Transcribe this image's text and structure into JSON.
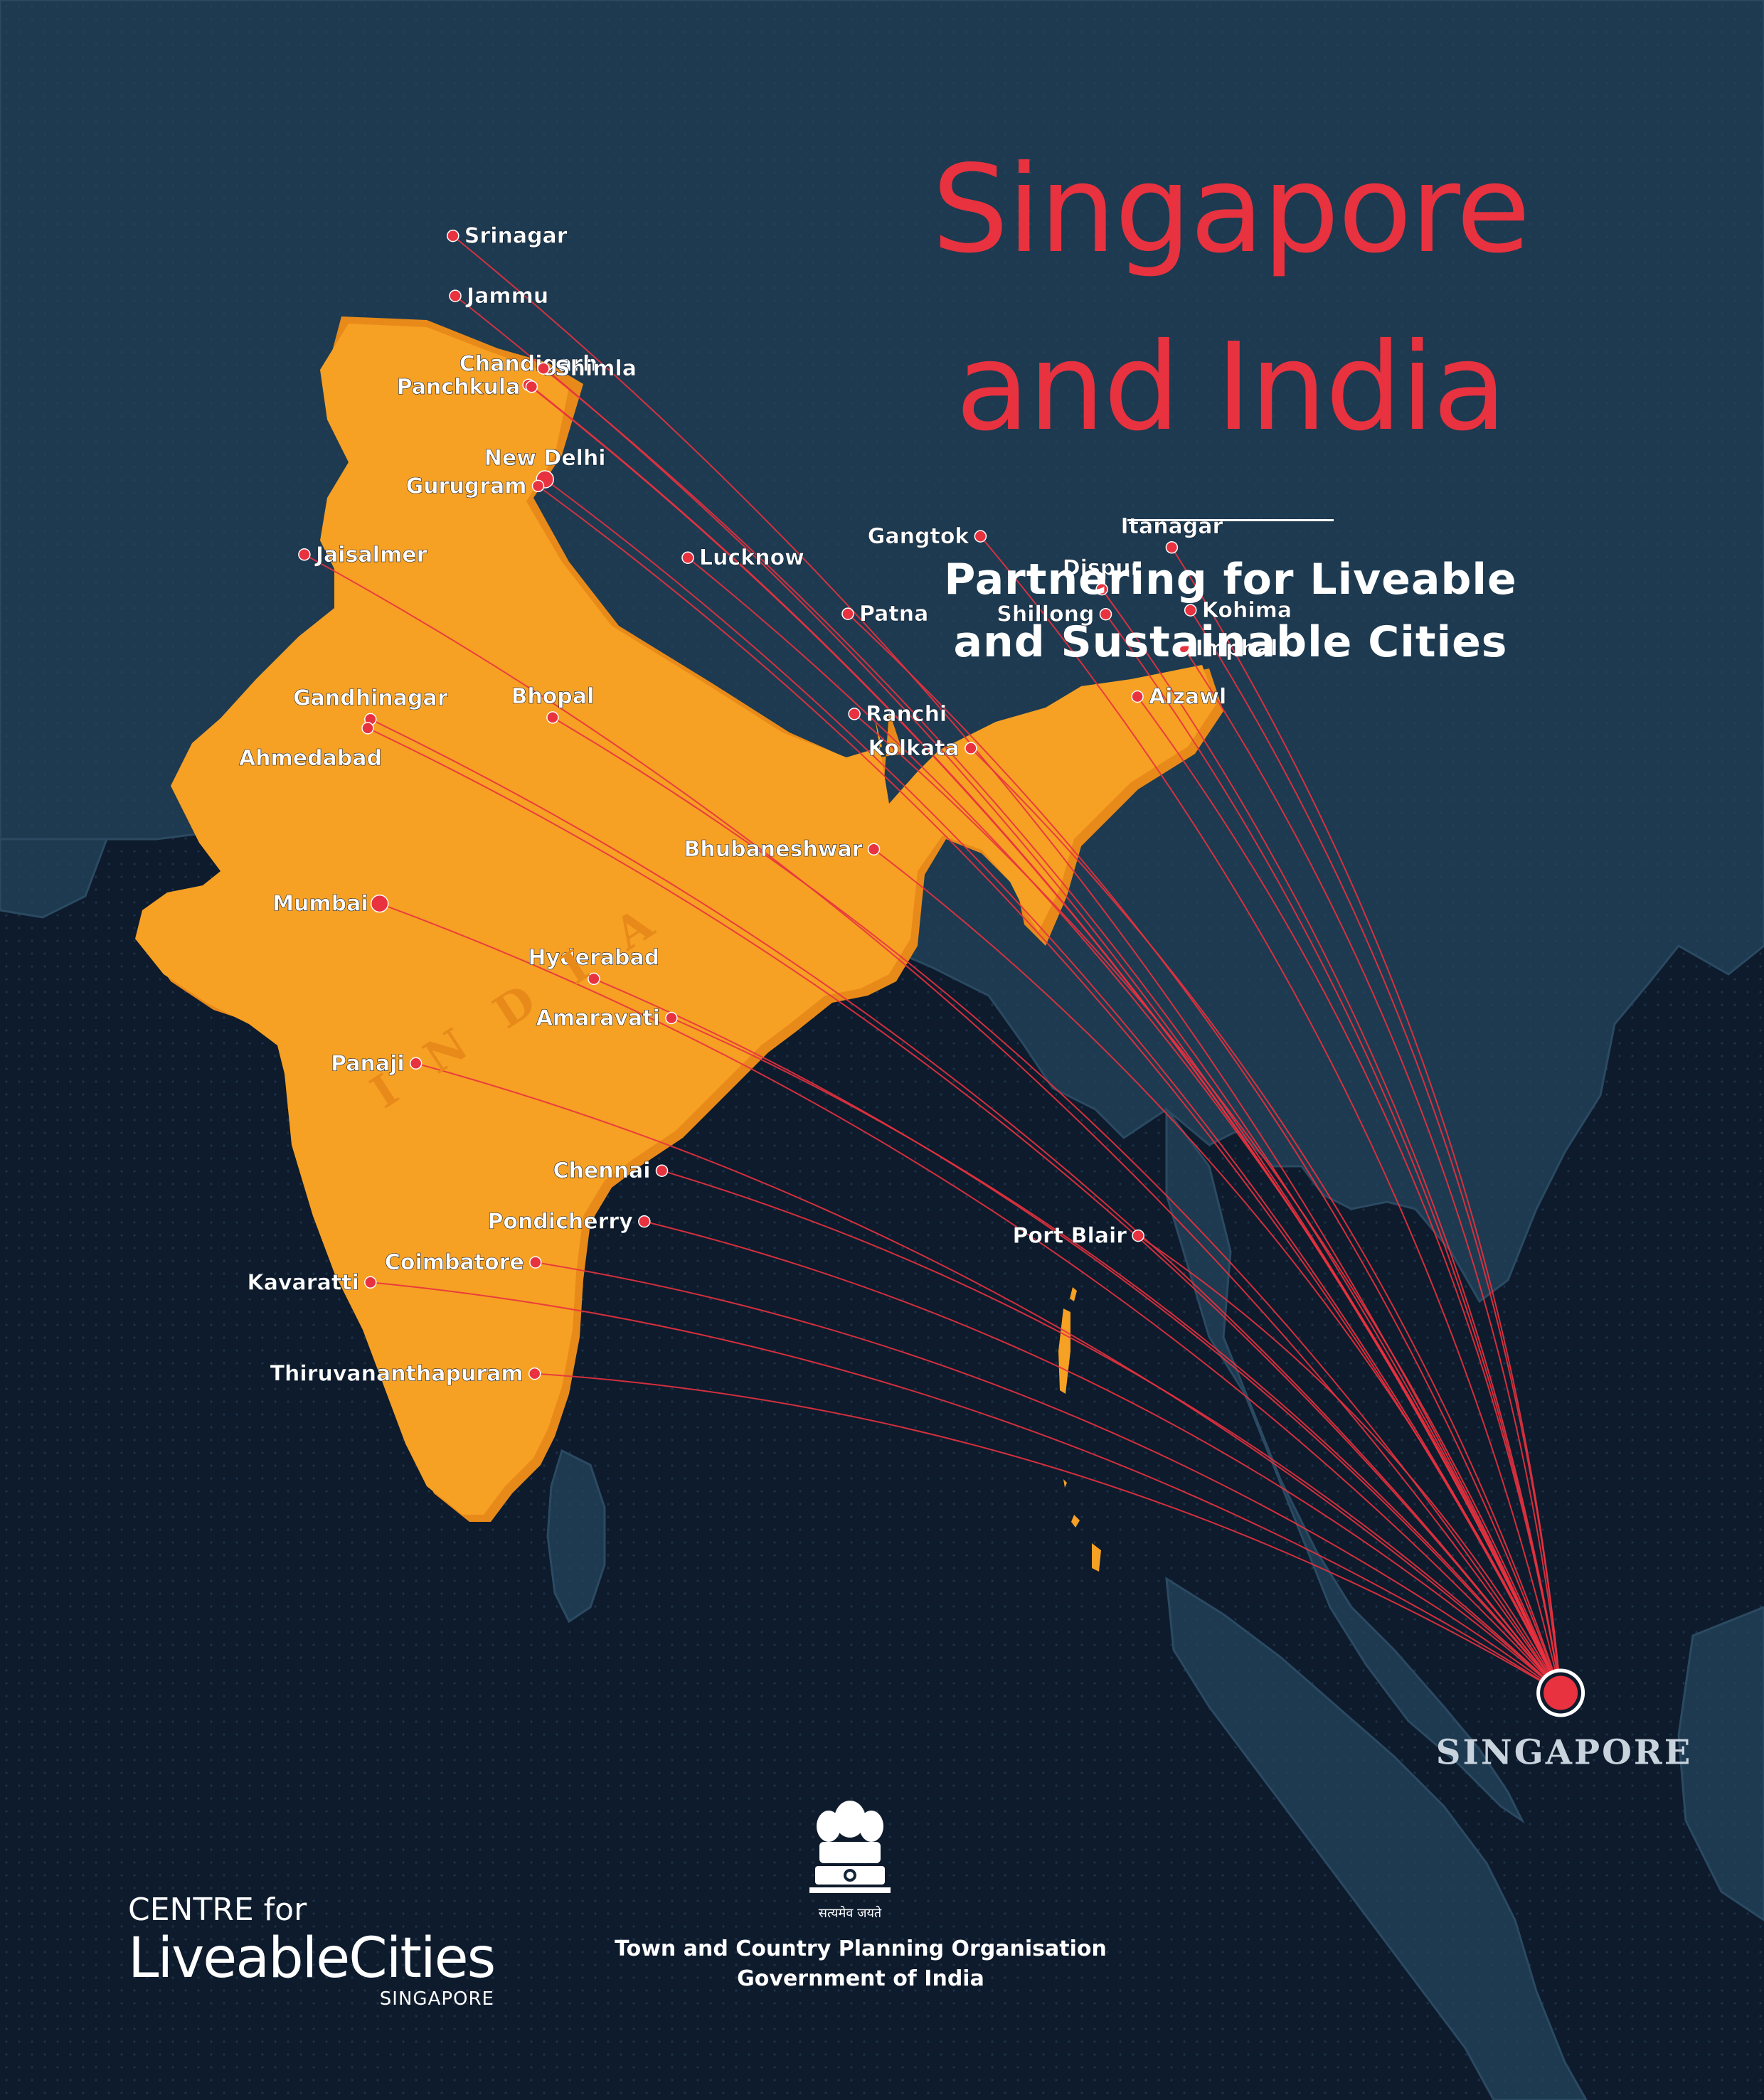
{
  "title": [
    "Singapore",
    "and India"
  ],
  "subtitle": [
    "Partnering for Liveable",
    "and Sustainable Cities"
  ],
  "map": {
    "country_label": "INDIA",
    "hub": {
      "name": "SINGAPORE",
      "lon": 103.8,
      "lat": 1.35
    },
    "colors": {
      "sea": "#0d1b2c",
      "neighbour_land": "#1d3a50",
      "india_fill": "#f6a024",
      "route_line": "#e8323f",
      "city_dot": "#e8323f",
      "city_label": "#ffffff",
      "hub_label": "#c8d3de"
    },
    "cities": [
      {
        "name": "Srinagar",
        "lon": 74.8,
        "lat": 34.08
      },
      {
        "name": "Jammu",
        "lon": 74.86,
        "lat": 32.73
      },
      {
        "name": "Chandigarh",
        "lon": 76.78,
        "lat": 30.73
      },
      {
        "name": "Shimla",
        "lon": 77.17,
        "lat": 31.1
      },
      {
        "name": "Panchkula",
        "lon": 76.86,
        "lat": 30.69
      },
      {
        "name": "New Delhi",
        "lon": 77.21,
        "lat": 28.61
      },
      {
        "name": "Gurugram",
        "lon": 77.03,
        "lat": 28.46
      },
      {
        "name": "Jaisalmer",
        "lon": 70.91,
        "lat": 26.92
      },
      {
        "name": "Lucknow",
        "lon": 80.95,
        "lat": 26.85
      },
      {
        "name": "Gangtok",
        "lon": 88.61,
        "lat": 27.33
      },
      {
        "name": "Itanagar",
        "lon": 93.62,
        "lat": 27.08
      },
      {
        "name": "Dispur",
        "lon": 91.79,
        "lat": 26.14
      },
      {
        "name": "Shillong",
        "lon": 91.89,
        "lat": 25.58
      },
      {
        "name": "Kohima",
        "lon": 94.11,
        "lat": 25.67
      },
      {
        "name": "Imphal",
        "lon": 93.94,
        "lat": 24.82
      },
      {
        "name": "Patna",
        "lon": 85.14,
        "lat": 25.59
      },
      {
        "name": "Ranchi",
        "lon": 85.31,
        "lat": 23.34
      },
      {
        "name": "Kolkata",
        "lon": 88.36,
        "lat": 22.57
      },
      {
        "name": "Aizawl",
        "lon": 92.72,
        "lat": 23.73
      },
      {
        "name": "Gandhinagar",
        "lon": 72.64,
        "lat": 23.22
      },
      {
        "name": "Ahmedabad",
        "lon": 72.57,
        "lat": 23.02
      },
      {
        "name": "Bhopal",
        "lon": 77.41,
        "lat": 23.26
      },
      {
        "name": "Bhubaneshwar",
        "lon": 85.82,
        "lat": 20.3
      },
      {
        "name": "Mumbai",
        "lon": 72.88,
        "lat": 19.08
      },
      {
        "name": "Hyderabad",
        "lon": 78.49,
        "lat": 17.39
      },
      {
        "name": "Amaravati",
        "lon": 80.52,
        "lat": 16.51
      },
      {
        "name": "Panaji",
        "lon": 73.83,
        "lat": 15.49
      },
      {
        "name": "Chennai",
        "lon": 80.27,
        "lat": 13.08
      },
      {
        "name": "Pondicherry",
        "lon": 79.81,
        "lat": 11.94
      },
      {
        "name": "Port Blair",
        "lon": 92.74,
        "lat": 11.62
      },
      {
        "name": "Coimbatore",
        "lon": 76.96,
        "lat": 11.02
      },
      {
        "name": "Kavaratti",
        "lon": 72.64,
        "lat": 10.57
      },
      {
        "name": "Thiruvananthapuram",
        "lon": 76.94,
        "lat": 8.52
      }
    ]
  },
  "logos": {
    "clc": {
      "line1": "CENTRE for",
      "line2": "LiveableCities",
      "line3": "SINGAPORE"
    },
    "emblem_motto": "सत्यमेव जयते",
    "tcpo": [
      "Town and Country Planning Organisation",
      "Government of India"
    ]
  }
}
